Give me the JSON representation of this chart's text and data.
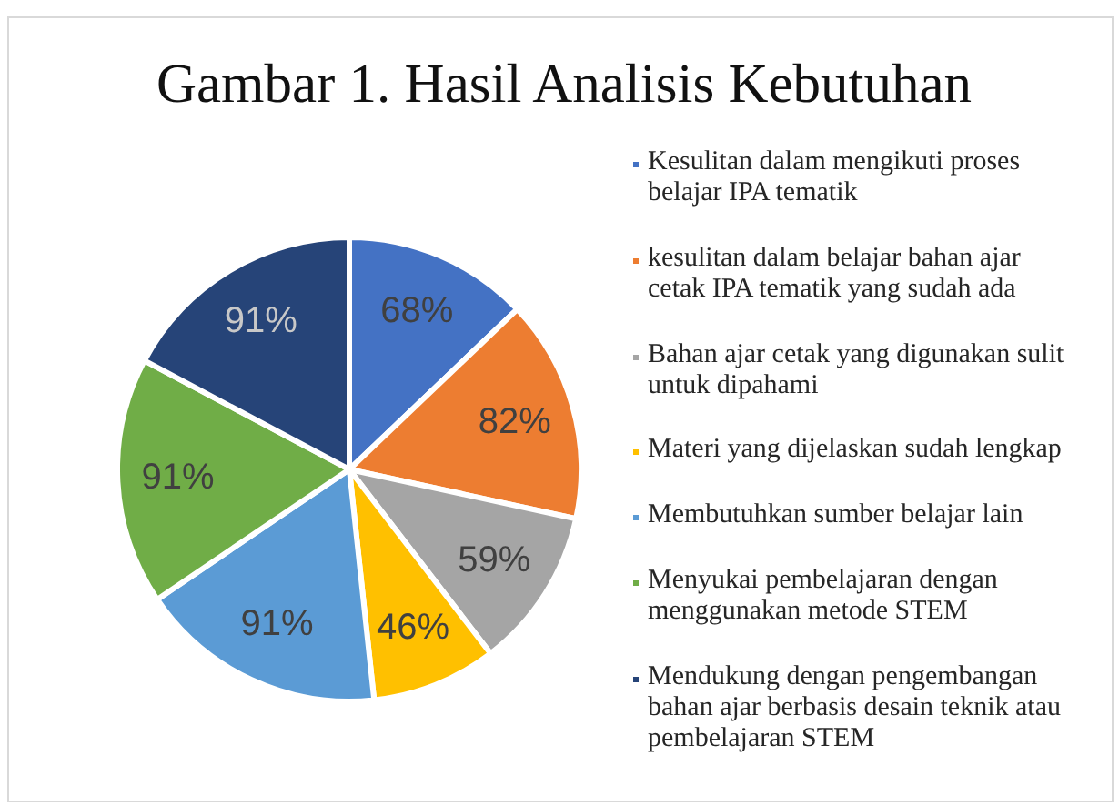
{
  "chart_data": {
    "type": "pie",
    "title": "Gambar 1. Hasil Analisis Kebutuhan",
    "categories": [
      "Kesulitan dalam mengikuti proses belajar IPA tematik",
      "kesulitan dalam belajar bahan ajar cetak IPA tematik yang sudah ada",
      "Bahan ajar cetak yang digunakan sulit untuk dipahami",
      "Materi yang dijelaskan sudah lengkap",
      "Membutuhkan sumber belajar lain",
      "Menyukai pembelajaran dengan menggunakan metode STEM",
      "Mendukung dengan pengembangan bahan ajar berbasis desain teknik atau pembelajaran STEM"
    ],
    "values": [
      68,
      82,
      59,
      46,
      91,
      91,
      91
    ],
    "colors": [
      "#4472c4",
      "#ed7d31",
      "#a5a5a5",
      "#ffc000",
      "#5b9bd5",
      "#70ad47",
      "#264478"
    ],
    "value_labels": [
      "68%",
      "82%",
      "59%",
      "46%",
      "91%",
      "91%",
      "91%"
    ],
    "legend": "right"
  }
}
